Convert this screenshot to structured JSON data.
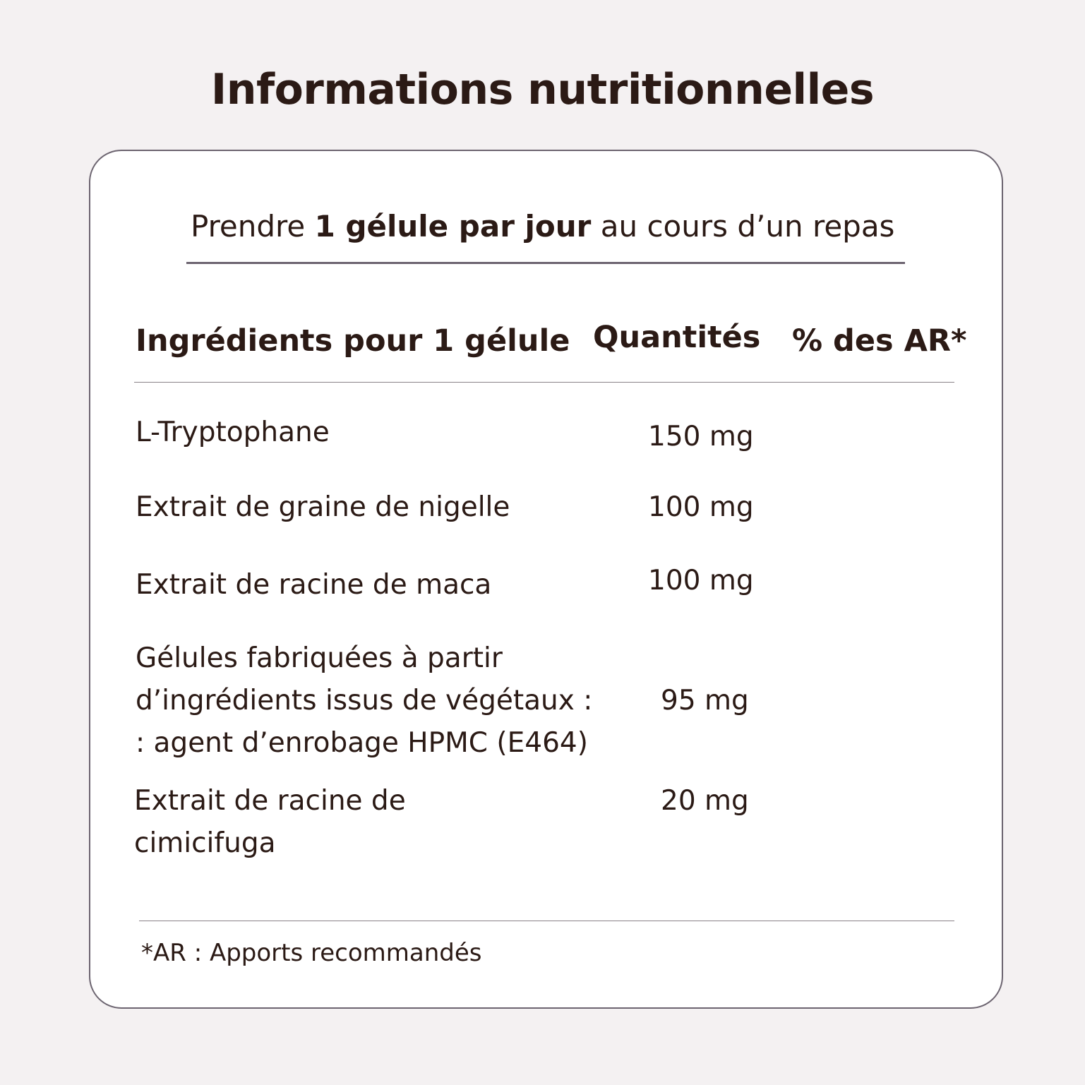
{
  "title": "Informations nutritionnelles",
  "dosage": {
    "prefix": "Prendre ",
    "bold": "1 gélule par jour",
    "suffix": " au cours d’un repas"
  },
  "table": {
    "headers": [
      "Ingrédients pour 1 gélule",
      "Quantités",
      "% des AR*"
    ],
    "rows": [
      {
        "ingredient": "L-Tryptophane",
        "quantity": "150 mg"
      },
      {
        "ingredient": "Extrait de graine de nigelle",
        "quantity": "100 mg"
      },
      {
        "ingredient": "Extrait de racine de maca",
        "quantity": "100 mg"
      },
      {
        "ingredient_lines": [
          "Gélules fabriquées à partir",
          "d’ingrédients issus de végétaux :",
          ": agent d’enrobage HPMC (E464)"
        ],
        "quantity": "95 mg"
      },
      {
        "ingredient_lines": [
          "Extrait de racine de",
          "cimicifuga"
        ],
        "quantity": "20 mg"
      }
    ]
  },
  "footnote": "*AR : Apports recommandés",
  "colors": {
    "background": "#f4f1f2",
    "text": "#2b1a15",
    "border": "#6c6470"
  }
}
